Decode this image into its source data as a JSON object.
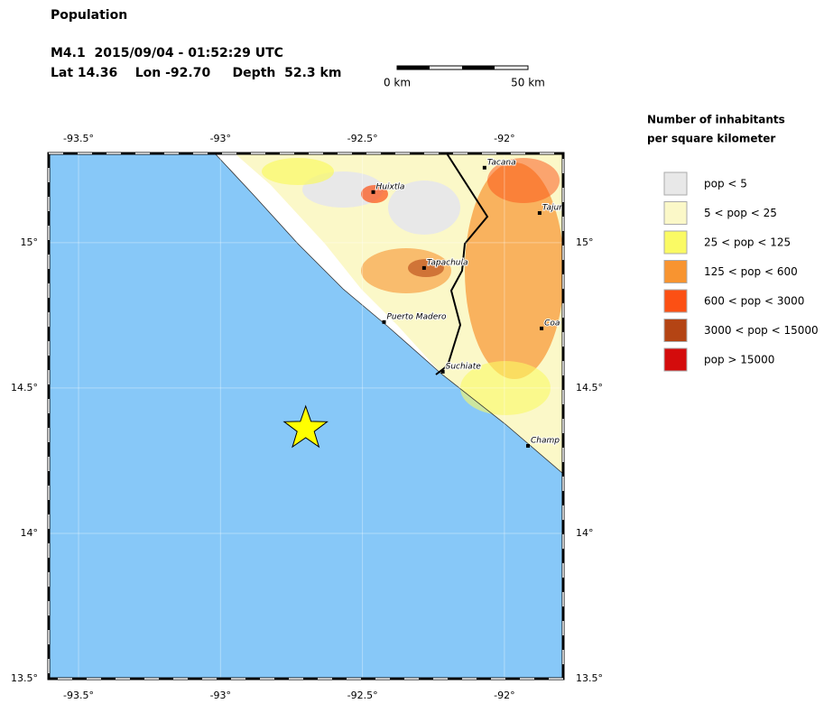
{
  "header": {
    "title": "Population",
    "event": "M4.1  2015/09/04 - 01:52:29 UTC",
    "location": "Lat 14.36    Lon -92.70     Depth  52.3 km"
  },
  "scale_bar": {
    "start": "0 km",
    "end": "50 km"
  },
  "map": {
    "lon_range": [
      -93.605,
      -91.793
    ],
    "lat_range": [
      13.5,
      15.307
    ],
    "lon_ticks": [
      {
        "value": -93.5,
        "label": "-93.5°"
      },
      {
        "value": -93,
        "label": "-93°"
      },
      {
        "value": -92.5,
        "label": "-92.5°"
      },
      {
        "value": -92,
        "label": "-92°"
      }
    ],
    "lat_ticks": [
      {
        "value": 13.5,
        "label": "13.5°"
      },
      {
        "value": 14,
        "label": "14°"
      },
      {
        "value": 14.5,
        "label": "14.5°"
      },
      {
        "value": 15,
        "label": "15°"
      }
    ],
    "epicenter": {
      "lon": -92.7,
      "lat": 14.36,
      "color": "#ffff00"
    },
    "cities": [
      {
        "name": "Huixtla",
        "lon": -92.462,
        "lat": 15.174
      },
      {
        "name": "Tacana",
        "lon": -92.07,
        "lat": 15.258
      },
      {
        "name": "Tajum",
        "lon": -91.876,
        "lat": 15.102
      },
      {
        "name": "Tapachula",
        "lon": -92.283,
        "lat": 14.913
      },
      {
        "name": "Puerto Madero",
        "lon": -92.424,
        "lat": 14.727
      },
      {
        "name": "Suchiate",
        "lon": -92.217,
        "lat": 14.556
      },
      {
        "name": "Coa",
        "lon": -91.869,
        "lat": 14.705
      },
      {
        "name": "Champ",
        "lon": -91.917,
        "lat": 14.301
      }
    ]
  },
  "legend": {
    "title": [
      "Number of inhabitants",
      "per square kilometer"
    ],
    "items": [
      {
        "label": "pop < 5",
        "color": "#e8e8e8"
      },
      {
        "label": "5 < pop < 25",
        "color": "#fbf8c8"
      },
      {
        "label": "25 < pop < 125",
        "color": "#fafa64"
      },
      {
        "label": "125 < pop < 600",
        "color": "#f89430"
      },
      {
        "label": "600 < pop < 3000",
        "color": "#fc5014"
      },
      {
        "label": "3000 < pop < 15000",
        "color": "#b44414"
      },
      {
        "label": "pop > 15000",
        "color": "#d40c0c"
      }
    ]
  }
}
